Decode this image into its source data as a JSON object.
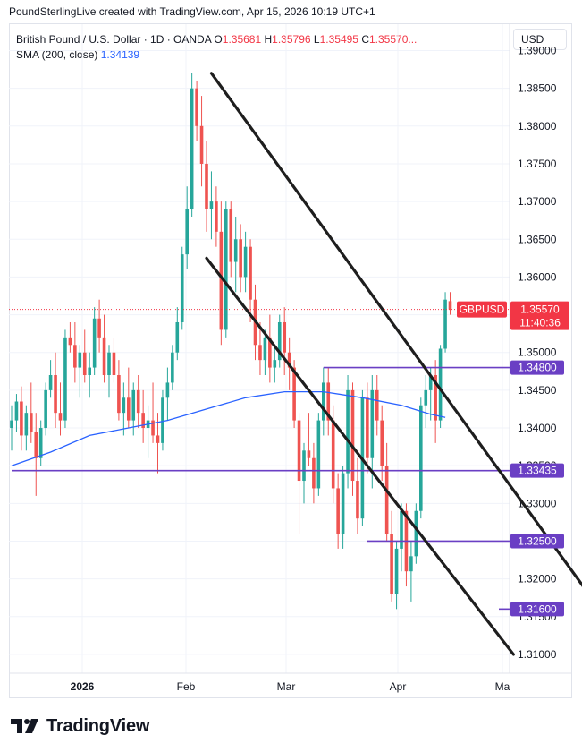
{
  "caption": "PoundSterlingLive created with TradingView.com, Apr 15, 2026 10:19 UTC+1",
  "legend": {
    "symbol": "British Pound / U.S. Dollar · 1D · OANDA",
    "o_label": "O",
    "o_value": "1.35681",
    "h_label": "H",
    "h_value": "1.35796",
    "l_label": "L",
    "l_value": "1.35495",
    "c_label": "C",
    "c_value": "1.35570...",
    "sma_label": "SMA (200, close)",
    "sma_value": "1.34139"
  },
  "currency": "USD",
  "logo_text": "TradingView",
  "colors": {
    "up": "#26a69a",
    "down": "#ef5350",
    "sma": "#2962ff",
    "level": "#6a3fc4",
    "price_tag": "#f23645",
    "trendline": "#1e1e1e"
  },
  "chart_data": {
    "type": "candlestick",
    "symbol": "GBPUSD",
    "y_axis": {
      "min": 1.3075,
      "max": 1.3935,
      "ticks": [
        "1.39000",
        "1.38500",
        "1.38000",
        "1.37500",
        "1.37000",
        "1.36500",
        "1.36000",
        "1.35500",
        "1.35000",
        "1.34500",
        "1.34000",
        "1.33500",
        "1.33000",
        "1.32500",
        "1.32000",
        "1.31500",
        "1.31000"
      ]
    },
    "x_labels": [
      "2026",
      "Feb",
      "Mar",
      "Apr",
      "Ma"
    ],
    "candles": [
      [
        1.34,
        1.343,
        1.337,
        1.341
      ],
      [
        1.341,
        1.3445,
        1.3395,
        1.3435
      ],
      [
        1.3435,
        1.3455,
        1.337,
        1.339
      ],
      [
        1.339,
        1.343,
        1.337,
        1.342
      ],
      [
        1.342,
        1.346,
        1.338,
        1.3395
      ],
      [
        1.3395,
        1.342,
        1.331,
        1.336
      ],
      [
        1.336,
        1.341,
        1.335,
        1.34
      ],
      [
        1.34,
        1.346,
        1.339,
        1.345
      ],
      [
        1.345,
        1.349,
        1.344,
        1.347
      ],
      [
        1.347,
        1.35,
        1.34,
        1.342
      ],
      [
        1.342,
        1.346,
        1.339,
        1.341
      ],
      [
        1.341,
        1.353,
        1.34,
        1.352
      ],
      [
        1.352,
        1.354,
        1.35,
        1.351
      ],
      [
        1.351,
        1.354,
        1.346,
        1.348
      ],
      [
        1.348,
        1.351,
        1.344,
        1.35
      ],
      [
        1.35,
        1.353,
        1.346,
        1.347
      ],
      [
        1.347,
        1.35,
        1.344,
        1.348
      ],
      [
        1.348,
        1.356,
        1.347,
        1.3545
      ],
      [
        1.3545,
        1.357,
        1.35,
        1.352
      ],
      [
        1.352,
        1.355,
        1.346,
        1.347
      ],
      [
        1.347,
        1.351,
        1.344,
        1.35
      ],
      [
        1.35,
        1.352,
        1.346,
        1.347
      ],
      [
        1.347,
        1.349,
        1.341,
        1.342
      ],
      [
        1.342,
        1.346,
        1.339,
        1.344
      ],
      [
        1.344,
        1.348,
        1.34,
        1.341
      ],
      [
        1.341,
        1.346,
        1.339,
        1.345
      ],
      [
        1.345,
        1.347,
        1.34,
        1.342
      ],
      [
        1.342,
        1.345,
        1.338,
        1.34
      ],
      [
        1.34,
        1.343,
        1.336,
        1.341
      ],
      [
        1.341,
        1.346,
        1.338,
        1.339
      ],
      [
        1.339,
        1.342,
        1.334,
        1.338
      ],
      [
        1.338,
        1.345,
        1.337,
        1.344
      ],
      [
        1.344,
        1.348,
        1.341,
        1.346
      ],
      [
        1.346,
        1.351,
        1.345,
        1.35
      ],
      [
        1.35,
        1.356,
        1.349,
        1.354
      ],
      [
        1.354,
        1.364,
        1.353,
        1.363
      ],
      [
        1.363,
        1.372,
        1.361,
        1.369
      ],
      [
        1.369,
        1.387,
        1.368,
        1.385
      ],
      [
        1.385,
        1.386,
        1.378,
        1.38
      ],
      [
        1.38,
        1.384,
        1.372,
        1.375
      ],
      [
        1.375,
        1.378,
        1.366,
        1.369
      ],
      [
        1.369,
        1.374,
        1.365,
        1.37
      ],
      [
        1.37,
        1.372,
        1.364,
        1.366
      ],
      [
        1.366,
        1.37,
        1.351,
        1.353
      ],
      [
        1.353,
        1.37,
        1.352,
        1.369
      ],
      [
        1.369,
        1.37,
        1.36,
        1.362
      ],
      [
        1.362,
        1.368,
        1.358,
        1.365
      ],
      [
        1.365,
        1.367,
        1.358,
        1.36
      ],
      [
        1.36,
        1.366,
        1.358,
        1.364
      ],
      [
        1.364,
        1.365,
        1.354,
        1.357
      ],
      [
        1.357,
        1.359,
        1.349,
        1.351
      ],
      [
        1.351,
        1.354,
        1.347,
        1.349
      ],
      [
        1.349,
        1.353,
        1.347,
        1.352
      ],
      [
        1.352,
        1.355,
        1.346,
        1.348
      ],
      [
        1.348,
        1.351,
        1.346,
        1.349
      ],
      [
        1.349,
        1.355,
        1.348,
        1.354
      ],
      [
        1.354,
        1.356,
        1.347,
        1.35
      ],
      [
        1.35,
        1.352,
        1.345,
        1.348
      ],
      [
        1.348,
        1.349,
        1.34,
        1.341
      ],
      [
        1.341,
        1.342,
        1.326,
        1.333
      ],
      [
        1.333,
        1.338,
        1.33,
        1.337
      ],
      [
        1.337,
        1.342,
        1.335,
        1.336
      ],
      [
        1.336,
        1.338,
        1.33,
        1.332
      ],
      [
        1.332,
        1.342,
        1.331,
        1.341
      ],
      [
        1.341,
        1.348,
        1.339,
        1.346
      ],
      [
        1.346,
        1.348,
        1.339,
        1.341
      ],
      [
        1.341,
        1.343,
        1.33,
        1.332
      ],
      [
        1.332,
        1.334,
        1.324,
        1.326
      ],
      [
        1.326,
        1.335,
        1.324,
        1.334
      ],
      [
        1.334,
        1.347,
        1.332,
        1.345
      ],
      [
        1.345,
        1.346,
        1.331,
        1.333
      ],
      [
        1.333,
        1.336,
        1.326,
        1.328
      ],
      [
        1.328,
        1.345,
        1.327,
        1.344
      ],
      [
        1.344,
        1.346,
        1.334,
        1.336
      ],
      [
        1.336,
        1.347,
        1.332,
        1.345
      ],
      [
        1.345,
        1.347,
        1.339,
        1.341
      ],
      [
        1.341,
        1.343,
        1.333,
        1.335
      ],
      [
        1.335,
        1.338,
        1.325,
        1.326
      ],
      [
        1.326,
        1.329,
        1.317,
        1.318
      ],
      [
        1.318,
        1.325,
        1.316,
        1.324
      ],
      [
        1.324,
        1.33,
        1.321,
        1.329
      ],
      [
        1.329,
        1.33,
        1.319,
        1.321
      ],
      [
        1.321,
        1.325,
        1.317,
        1.323
      ],
      [
        1.323,
        1.33,
        1.322,
        1.329
      ],
      [
        1.329,
        1.344,
        1.328,
        1.343
      ],
      [
        1.343,
        1.347,
        1.34,
        1.345
      ],
      [
        1.345,
        1.348,
        1.341,
        1.347
      ],
      [
        1.347,
        1.349,
        1.338,
        1.341
      ],
      [
        1.341,
        1.351,
        1.34,
        1.3505
      ],
      [
        1.3505,
        1.358,
        1.35,
        1.357
      ],
      [
        1.3568,
        1.358,
        1.355,
        1.3557
      ]
    ],
    "sma": {
      "name": "SMA (200, close)",
      "points": [
        [
          0,
          1.335
        ],
        [
          8,
          1.3368
        ],
        [
          16,
          1.339
        ],
        [
          24,
          1.34
        ],
        [
          32,
          1.341
        ],
        [
          40,
          1.3425
        ],
        [
          48,
          1.344
        ],
        [
          56,
          1.3448
        ],
        [
          64,
          1.3448
        ],
        [
          72,
          1.344
        ],
        [
          80,
          1.343
        ],
        [
          86,
          1.3418
        ],
        [
          89,
          1.3414
        ]
      ]
    },
    "trendlines": [
      {
        "from": [
          41,
          1.387
        ],
        "to": [
          119,
          1.3175
        ]
      },
      {
        "from": [
          40,
          1.3625
        ],
        "to": [
          103,
          1.31
        ]
      }
    ],
    "levels": [
      {
        "value": 1.348,
        "label": "1.34800",
        "from_idx": 64
      },
      {
        "value": 1.33435,
        "label": "1.33435",
        "from_idx": 0
      },
      {
        "value": 1.325,
        "label": "1.32500",
        "from_idx": 73
      },
      {
        "value": 1.316,
        "label": "1.31600",
        "from_idx": 100
      }
    ],
    "last_price": {
      "symbol": "GBPUSD",
      "value": 1.3557,
      "label": "1.35570",
      "countdown": "11:40:36"
    }
  }
}
